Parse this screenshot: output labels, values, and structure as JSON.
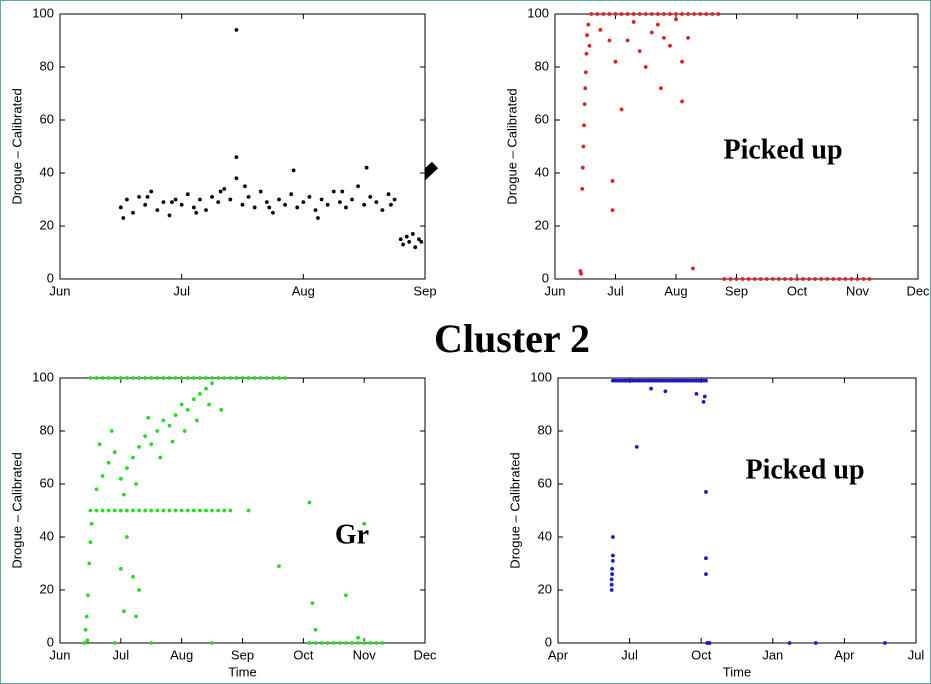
{
  "title": "Cluster 2",
  "chart_data": [
    {
      "type": "scatter",
      "ylabel": "Drogue – Calibrated",
      "color": "#000000",
      "xlim": [
        6,
        9
      ],
      "xticks": [
        {
          "value": 6,
          "label": "Jun"
        },
        {
          "value": 7,
          "label": "Jul"
        },
        {
          "value": 8,
          "label": "Aug"
        },
        {
          "value": 9,
          "label": "Sep"
        }
      ],
      "ylim": [
        0,
        100
      ],
      "yticks": [
        0,
        20,
        40,
        60,
        80,
        100
      ],
      "x": [
        6.5,
        6.55,
        6.6,
        6.65,
        6.7,
        6.75,
        6.8,
        6.85,
        6.9,
        6.95,
        7.0,
        7.05,
        7.1,
        7.15,
        7.2,
        7.25,
        7.3,
        7.35,
        7.4,
        7.45,
        7.45,
        7.45,
        7.5,
        7.55,
        7.6,
        7.65,
        7.7,
        7.75,
        7.8,
        7.85,
        7.9,
        7.95,
        8.0,
        8.05,
        8.1,
        8.15,
        8.2,
        8.25,
        8.3,
        8.35,
        8.4,
        8.45,
        8.5,
        8.55,
        8.6,
        8.65,
        8.7,
        8.75,
        8.8,
        8.82,
        8.85,
        8.87,
        8.9,
        8.92,
        8.95,
        8.97,
        6.52,
        6.72,
        6.92,
        7.12,
        7.32,
        7.52,
        7.72,
        7.92,
        8.12,
        8.32,
        8.52,
        8.72
      ],
      "values": [
        27,
        30,
        25,
        31,
        28,
        33,
        26,
        29,
        24,
        30,
        28,
        32,
        27,
        30,
        26,
        31,
        29,
        34,
        30,
        94,
        46,
        38,
        28,
        31,
        27,
        33,
        29,
        25,
        30,
        28,
        32,
        27,
        29,
        31,
        26,
        30,
        28,
        33,
        29,
        27,
        30,
        35,
        28,
        31,
        29,
        26,
        32,
        30,
        15,
        13,
        16,
        14,
        17,
        12,
        15,
        14,
        23,
        31,
        29,
        25,
        33,
        35,
        27,
        41,
        23,
        33,
        42,
        28
      ]
    },
    {
      "type": "scatter",
      "ylabel": "Drogue – Calibrated",
      "annotation": "Picked up",
      "color": "#e02020",
      "xlim": [
        6,
        12
      ],
      "xticks": [
        {
          "value": 6,
          "label": "Jun"
        },
        {
          "value": 7,
          "label": "Jul"
        },
        {
          "value": 8,
          "label": "Aug"
        },
        {
          "value": 9,
          "label": "Sep"
        },
        {
          "value": 10,
          "label": "Oct"
        },
        {
          "value": 11,
          "label": "Nov"
        },
        {
          "value": 12,
          "label": "Dec"
        }
      ],
      "ylim": [
        0,
        100
      ],
      "yticks": [
        0,
        20,
        40,
        60,
        80,
        100
      ],
      "x": [
        6.42,
        6.43,
        6.45,
        6.46,
        6.47,
        6.48,
        6.49,
        6.5,
        6.51,
        6.52,
        6.53,
        6.55,
        6.57,
        6.6,
        6.7,
        6.8,
        6.9,
        7.0,
        7.1,
        7.2,
        7.3,
        7.4,
        7.5,
        7.6,
        7.7,
        7.8,
        7.9,
        8.0,
        8.1,
        8.2,
        8.3,
        8.4,
        8.5,
        8.6,
        8.7,
        6.75,
        6.9,
        7.0,
        7.1,
        7.2,
        7.3,
        7.4,
        7.5,
        7.6,
        7.7,
        7.8,
        7.9,
        8.0,
        8.1,
        8.1,
        6.95,
        6.95,
        7.75,
        8.2,
        8.28,
        8.8,
        8.9,
        9.0,
        9.1,
        9.2,
        9.3,
        9.4,
        9.5,
        9.6,
        9.7,
        9.8,
        9.9,
        10.0,
        10.1,
        10.2,
        10.3,
        10.4,
        10.5,
        10.6,
        10.7,
        10.8,
        10.9,
        11.0,
        11.1,
        11.2
      ],
      "values": [
        3,
        2,
        34,
        42,
        50,
        58,
        66,
        72,
        78,
        85,
        92,
        96,
        88,
        100,
        100,
        100,
        100,
        100,
        100,
        100,
        100,
        100,
        100,
        100,
        100,
        100,
        100,
        100,
        100,
        100,
        100,
        100,
        100,
        100,
        100,
        94,
        90,
        82,
        64,
        90,
        97,
        86,
        80,
        93,
        96,
        91,
        88,
        98,
        82,
        67,
        37,
        26,
        72,
        91,
        4,
        0,
        0,
        0,
        0,
        0,
        0,
        0,
        0,
        0,
        0,
        0,
        0,
        0,
        0,
        0,
        0,
        0,
        0,
        0,
        0,
        0,
        0,
        0,
        0,
        0
      ]
    },
    {
      "type": "scatter",
      "ylabel": "Drogue – Calibrated",
      "xlabel": "Time",
      "annotation": "Gr",
      "color": "#22dd22",
      "xlim": [
        6,
        12
      ],
      "xticks": [
        {
          "value": 6,
          "label": "Jun"
        },
        {
          "value": 7,
          "label": "Jul"
        },
        {
          "value": 8,
          "label": "Aug"
        },
        {
          "value": 9,
          "label": "Sep"
        },
        {
          "value": 10,
          "label": "Oct"
        },
        {
          "value": 11,
          "label": "Nov"
        },
        {
          "value": 12,
          "label": "Dec"
        }
      ],
      "ylim": [
        0,
        100
      ],
      "yticks": [
        0,
        20,
        40,
        60,
        80,
        100
      ],
      "x": [
        6.5,
        6.6,
        6.7,
        6.8,
        6.9,
        7.0,
        7.1,
        7.2,
        7.3,
        7.4,
        7.5,
        7.6,
        7.7,
        7.8,
        7.9,
        8.0,
        8.1,
        8.2,
        8.3,
        8.4,
        8.5,
        8.6,
        8.7,
        8.8,
        8.9,
        9.0,
        9.1,
        9.2,
        9.3,
        9.4,
        9.5,
        9.6,
        9.7,
        6.5,
        6.6,
        6.7,
        6.8,
        6.9,
        7.0,
        7.1,
        7.2,
        7.3,
        7.4,
        7.5,
        7.6,
        7.7,
        7.8,
        7.9,
        8.0,
        8.1,
        8.2,
        8.3,
        8.4,
        8.5,
        8.6,
        8.7,
        8.8,
        6.4,
        6.42,
        6.44,
        6.46,
        6.48,
        6.5,
        6.52,
        6.45,
        6.6,
        6.7,
        6.8,
        6.9,
        7.0,
        7.1,
        7.2,
        7.3,
        7.4,
        7.5,
        7.6,
        7.7,
        7.8,
        7.9,
        8.0,
        8.1,
        8.2,
        8.3,
        8.4,
        8.5,
        6.65,
        6.85,
        7.05,
        7.25,
        7.45,
        7.65,
        7.85,
        8.05,
        8.25,
        8.45,
        8.65,
        7.0,
        7.05,
        7.1,
        7.2,
        7.25,
        7.3,
        6.9,
        7.5,
        8.5,
        9.6,
        9.1,
        10.1,
        10.15,
        10.2,
        10.7,
        11.0,
        10.9,
        10.1,
        10.2,
        10.3,
        10.4,
        10.5,
        10.6,
        10.7,
        10.8,
        10.9,
        11.0,
        11.1,
        11.2,
        11.3
      ],
      "values": [
        100,
        100,
        100,
        100,
        100,
        100,
        100,
        100,
        100,
        100,
        100,
        100,
        100,
        100,
        100,
        100,
        100,
        100,
        100,
        100,
        100,
        100,
        100,
        100,
        100,
        100,
        100,
        100,
        100,
        100,
        100,
        100,
        100,
        50,
        50,
        50,
        50,
        50,
        50,
        50,
        50,
        50,
        50,
        50,
        50,
        50,
        50,
        50,
        50,
        50,
        50,
        50,
        50,
        50,
        50,
        50,
        50,
        0,
        5,
        10,
        18,
        30,
        38,
        45,
        1,
        58,
        63,
        68,
        72,
        62,
        66,
        70,
        74,
        78,
        75,
        80,
        84,
        82,
        86,
        90,
        88,
        92,
        94,
        96,
        98,
        75,
        80,
        56,
        60,
        85,
        70,
        76,
        80,
        84,
        90,
        88,
        28,
        12,
        40,
        25,
        10,
        20,
        0,
        0,
        0,
        29,
        50,
        53,
        15,
        5,
        18,
        45,
        2,
        0,
        0,
        0,
        0,
        0,
        0,
        0,
        0,
        0,
        0,
        0,
        0,
        0
      ]
    },
    {
      "type": "scatter",
      "ylabel": "Drogue – Calibrated",
      "xlabel": "Time",
      "annotation": "Picked up",
      "color": "#1a1acc",
      "xlim": [
        4,
        19
      ],
      "xticks": [
        {
          "value": 4,
          "label": "Apr"
        },
        {
          "value": 7,
          "label": "Jul"
        },
        {
          "value": 10,
          "label": "Oct"
        },
        {
          "value": 13,
          "label": "Jan"
        },
        {
          "value": 16,
          "label": "Apr"
        },
        {
          "value": 19,
          "label": "Jul"
        }
      ],
      "ylim": [
        0,
        100
      ],
      "yticks": [
        0,
        20,
        40,
        60,
        80,
        100
      ],
      "x": [
        6.3,
        6.4,
        6.5,
        6.6,
        6.7,
        6.8,
        6.9,
        7.0,
        7.1,
        7.2,
        7.3,
        7.4,
        7.5,
        7.6,
        7.7,
        7.8,
        7.9,
        8.0,
        8.1,
        8.2,
        8.3,
        8.4,
        8.5,
        8.6,
        8.7,
        8.8,
        8.9,
        9.0,
        9.1,
        9.2,
        9.3,
        9.4,
        9.5,
        9.6,
        9.7,
        9.8,
        9.9,
        10.0,
        10.1,
        10.2,
        6.25,
        6.25,
        6.25,
        6.27,
        6.27,
        6.3,
        6.3,
        6.3,
        7.3,
        7.9,
        8.5,
        9.8,
        10.1,
        10.15,
        10.2,
        10.2,
        10.2,
        10.25,
        10.3,
        10.35,
        13.7,
        14.8,
        17.7
      ],
      "values": [
        99,
        99,
        99,
        99,
        99,
        99,
        99,
        99,
        99,
        99,
        99,
        99,
        99,
        99,
        99,
        99,
        99,
        99,
        99,
        99,
        99,
        99,
        99,
        99,
        99,
        99,
        99,
        99,
        99,
        99,
        99,
        99,
        99,
        99,
        99,
        99,
        99,
        99,
        99,
        99,
        20,
        22,
        24,
        26,
        28,
        31,
        33,
        40,
        74,
        96,
        95,
        94,
        91,
        93,
        57,
        32,
        26,
        0,
        0,
        0,
        0,
        0,
        0
      ]
    }
  ]
}
